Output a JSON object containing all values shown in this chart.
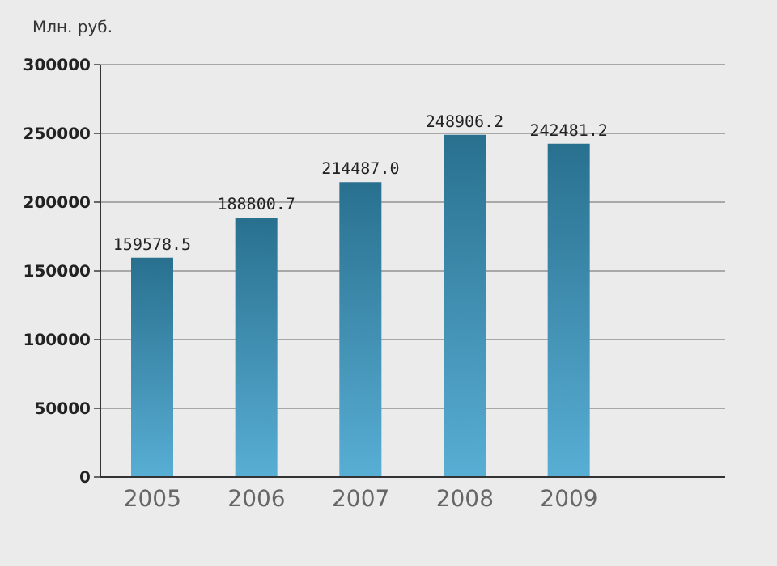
{
  "chart_data": {
    "type": "bar",
    "ylabel": "Млн. руб.",
    "categories": [
      "2005",
      "2006",
      "2007",
      "2008",
      "2009",
      null
    ],
    "values": [
      159578.5,
      188800.7,
      214487.0,
      248906.2,
      242481.2,
      null
    ],
    "value_labels": [
      "159578.5",
      "188800.7",
      "214487.0",
      "248906.2",
      "242481.2",
      null
    ],
    "color": "#3aa0cc",
    "ylim": [
      0,
      300000
    ],
    "yticks": [
      0,
      50000,
      100000,
      150000,
      200000,
      250000,
      300000
    ],
    "grid": "y"
  }
}
